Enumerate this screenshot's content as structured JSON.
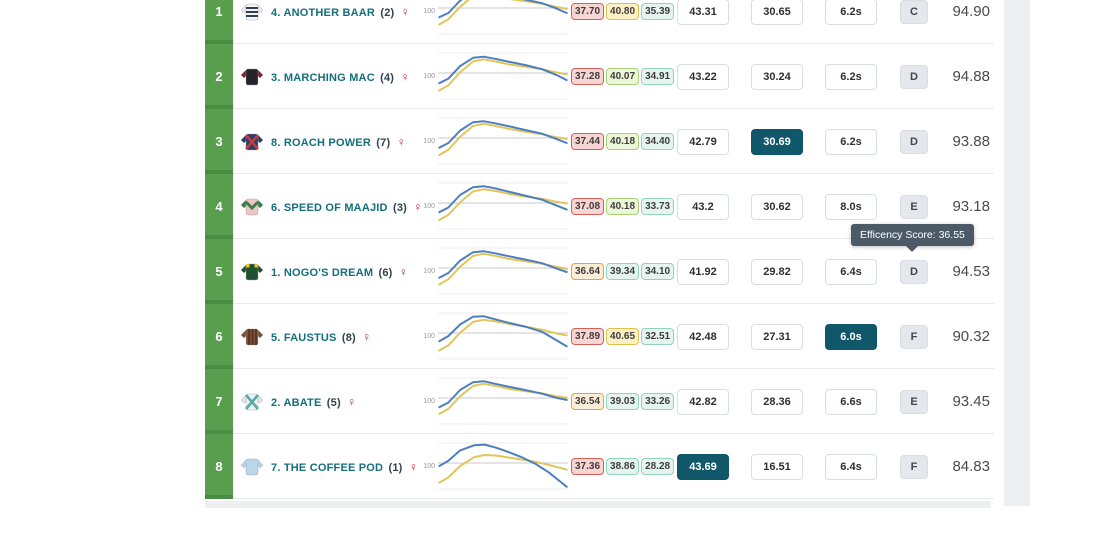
{
  "table": {
    "axis_label": "100"
  },
  "tooltip": {
    "text": "Efficency Score: 36.55"
  },
  "colors": {
    "rank_bg": "#599e4e",
    "rank_separator": "#4a8c43",
    "line_blue": "#4d7fc0",
    "line_yellow": "#e2c65c",
    "grid_main": "#c9c9c9",
    "grid_faint": "#ededed",
    "highlight_cell": "#10576a",
    "name_text": "#136f7c",
    "sex_icon": "#c42538"
  },
  "rows": [
    {
      "rank": "1",
      "silk": {
        "label": "silk-white-navy-hoops",
        "body": "#f5f5f5",
        "sleeve": "#e8e8ea",
        "pattern": "hoops",
        "pattern_color": "#2f3e55"
      },
      "number": "4.",
      "name": "ANOTHER BAAR",
      "draw": "(2)",
      "sex": "♀",
      "sectionals": [
        {
          "value": "37.70",
          "tone": "red"
        },
        {
          "value": "40.80",
          "tone": "yellow"
        },
        {
          "value": "35.39",
          "tone": "mint"
        }
      ],
      "metrics": [
        {
          "value": "43.31",
          "highlight": false
        },
        {
          "value": "30.65",
          "highlight": false
        },
        {
          "value": "6.2s",
          "highlight": false
        }
      ],
      "grade": "C",
      "score": "94.90",
      "chart": {
        "blue": [
          [
            1,
            60
          ],
          [
            8,
            52
          ],
          [
            17,
            28
          ],
          [
            27,
            12
          ],
          [
            35,
            10
          ],
          [
            44,
            14
          ],
          [
            55,
            20
          ],
          [
            67,
            26
          ],
          [
            80,
            33
          ],
          [
            91,
            43
          ],
          [
            99,
            52
          ]
        ],
        "yellow": [
          [
            1,
            74
          ],
          [
            8,
            64
          ],
          [
            17,
            40
          ],
          [
            27,
            19
          ],
          [
            35,
            15
          ],
          [
            44,
            19
          ],
          [
            55,
            25
          ],
          [
            67,
            29
          ],
          [
            80,
            34
          ],
          [
            91,
            40
          ],
          [
            99,
            44
          ]
        ]
      }
    },
    {
      "rank": "2",
      "silk": {
        "label": "silk-black-maroon",
        "body": "#26232a",
        "sleeve": "#7c2730",
        "pattern": "plain",
        "pattern_color": "#26232a"
      },
      "number": "3.",
      "name": "MARCHING MAC",
      "draw": "(4)",
      "sex": "♀",
      "sectionals": [
        {
          "value": "37.28",
          "tone": "red"
        },
        {
          "value": "40.07",
          "tone": "green"
        },
        {
          "value": "34.91",
          "tone": "mint"
        }
      ],
      "metrics": [
        {
          "value": "43.22",
          "highlight": false
        },
        {
          "value": "30.24",
          "highlight": false
        },
        {
          "value": "6.2s",
          "highlight": false
        }
      ],
      "grade": "D",
      "score": "94.88",
      "chart": {
        "blue": [
          [
            1,
            62
          ],
          [
            8,
            53
          ],
          [
            17,
            29
          ],
          [
            27,
            13
          ],
          [
            35,
            11
          ],
          [
            44,
            15
          ],
          [
            55,
            21
          ],
          [
            67,
            27
          ],
          [
            80,
            35
          ],
          [
            91,
            46
          ],
          [
            99,
            56
          ]
        ],
        "yellow": [
          [
            1,
            76
          ],
          [
            8,
            66
          ],
          [
            17,
            41
          ],
          [
            27,
            20
          ],
          [
            35,
            16
          ],
          [
            44,
            20
          ],
          [
            55,
            26
          ],
          [
            67,
            30
          ],
          [
            80,
            35
          ],
          [
            91,
            41
          ],
          [
            99,
            45
          ]
        ]
      }
    },
    {
      "rank": "3",
      "silk": {
        "label": "silk-navy-red-cross",
        "body": "#2d3c68",
        "sleeve": "#2d3c68",
        "pattern": "saltire",
        "pattern_color": "#c43b3b"
      },
      "number": "8.",
      "name": "ROACH POWER",
      "draw": "(7)",
      "sex": "♀",
      "sectionals": [
        {
          "value": "37.44",
          "tone": "red"
        },
        {
          "value": "40.18",
          "tone": "green"
        },
        {
          "value": "34.40",
          "tone": "mint"
        }
      ],
      "metrics": [
        {
          "value": "42.79",
          "highlight": false
        },
        {
          "value": "30.69",
          "highlight": true
        },
        {
          "value": "6.2s",
          "highlight": false
        }
      ],
      "grade": "D",
      "score": "93.88",
      "chart": {
        "blue": [
          [
            1,
            61
          ],
          [
            8,
            52
          ],
          [
            17,
            28
          ],
          [
            27,
            12
          ],
          [
            35,
            10
          ],
          [
            44,
            14
          ],
          [
            55,
            20
          ],
          [
            67,
            27
          ],
          [
            80,
            34
          ],
          [
            91,
            44
          ],
          [
            99,
            52
          ]
        ],
        "yellow": [
          [
            1,
            75
          ],
          [
            8,
            65
          ],
          [
            17,
            40
          ],
          [
            27,
            19
          ],
          [
            35,
            15
          ],
          [
            44,
            19
          ],
          [
            55,
            25
          ],
          [
            67,
            30
          ],
          [
            80,
            35
          ],
          [
            91,
            41
          ],
          [
            99,
            44
          ]
        ]
      }
    },
    {
      "rank": "4",
      "silk": {
        "label": "silk-pink-green-chevron",
        "body": "#ecc6c8",
        "sleeve": "#3f7d4b",
        "pattern": "chevron",
        "pattern_color": "#3f7d4b"
      },
      "number": "6.",
      "name": "SPEED OF MAAJID",
      "draw": "(3)",
      "sex": "♀",
      "sectionals": [
        {
          "value": "37.08",
          "tone": "red"
        },
        {
          "value": "40.18",
          "tone": "green"
        },
        {
          "value": "33.73",
          "tone": "mint"
        }
      ],
      "metrics": [
        {
          "value": "43.2",
          "highlight": false
        },
        {
          "value": "30.62",
          "highlight": false
        },
        {
          "value": "8.0s",
          "highlight": false
        }
      ],
      "grade": "E",
      "score": "93.18",
      "chart": {
        "blue": [
          [
            1,
            60
          ],
          [
            8,
            51
          ],
          [
            17,
            27
          ],
          [
            27,
            12
          ],
          [
            35,
            10
          ],
          [
            44,
            14
          ],
          [
            55,
            21
          ],
          [
            67,
            28
          ],
          [
            80,
            36
          ],
          [
            91,
            47
          ],
          [
            99,
            55
          ]
        ],
        "yellow": [
          [
            1,
            75
          ],
          [
            8,
            65
          ],
          [
            17,
            41
          ],
          [
            27,
            20
          ],
          [
            35,
            16
          ],
          [
            44,
            19
          ],
          [
            55,
            25
          ],
          [
            67,
            30
          ],
          [
            80,
            34
          ],
          [
            91,
            40
          ],
          [
            99,
            43
          ]
        ]
      }
    },
    {
      "rank": "5",
      "silk": {
        "label": "silk-darkgreen-yellow",
        "body": "#20512f",
        "sleeve": "#20512f",
        "pattern": "epaulets",
        "pattern_color": "#e5c733"
      },
      "number": "1.",
      "name": "NOGO'S DREAM",
      "draw": "(6)",
      "sex": "♀",
      "sectionals": [
        {
          "value": "36.64",
          "tone": "orange"
        },
        {
          "value": "39.34",
          "tone": "mint"
        },
        {
          "value": "34.10",
          "tone": "mint"
        }
      ],
      "metrics": [
        {
          "value": "41.92",
          "highlight": false
        },
        {
          "value": "29.82",
          "highlight": false
        },
        {
          "value": "6.4s",
          "highlight": false
        }
      ],
      "grade": "D",
      "score": "94.53",
      "chart": {
        "blue": [
          [
            1,
            61
          ],
          [
            8,
            52
          ],
          [
            17,
            28
          ],
          [
            27,
            12
          ],
          [
            35,
            10
          ],
          [
            44,
            14
          ],
          [
            55,
            20
          ],
          [
            67,
            26
          ],
          [
            80,
            33
          ],
          [
            91,
            43
          ],
          [
            99,
            50
          ]
        ],
        "yellow": [
          [
            1,
            74
          ],
          [
            8,
            64
          ],
          [
            17,
            40
          ],
          [
            27,
            19
          ],
          [
            35,
            15
          ],
          [
            44,
            19
          ],
          [
            55,
            25
          ],
          [
            67,
            29
          ],
          [
            80,
            34
          ],
          [
            91,
            40
          ],
          [
            99,
            44
          ]
        ]
      }
    },
    {
      "rank": "6",
      "silk": {
        "label": "silk-brown-stripes",
        "body": "#7d5138",
        "sleeve": "#7d5138",
        "pattern": "stripes",
        "pattern_color": "#56382a"
      },
      "number": "5.",
      "name": "FAUSTUS",
      "draw": "(8)",
      "sex": "♀",
      "sectionals": [
        {
          "value": "37.89",
          "tone": "red"
        },
        {
          "value": "40.65",
          "tone": "yellow"
        },
        {
          "value": "32.51",
          "tone": "mint"
        }
      ],
      "metrics": [
        {
          "value": "42.48",
          "highlight": false
        },
        {
          "value": "27.31",
          "highlight": false
        },
        {
          "value": "6.0s",
          "highlight": true
        }
      ],
      "grade": "F",
      "score": "90.32",
      "chart": {
        "blue": [
          [
            1,
            58
          ],
          [
            8,
            48
          ],
          [
            17,
            26
          ],
          [
            27,
            11
          ],
          [
            35,
            10
          ],
          [
            44,
            16
          ],
          [
            55,
            23
          ],
          [
            67,
            30
          ],
          [
            80,
            40
          ],
          [
            91,
            56
          ],
          [
            99,
            68
          ]
        ],
        "yellow": [
          [
            1,
            76
          ],
          [
            8,
            66
          ],
          [
            17,
            42
          ],
          [
            27,
            21
          ],
          [
            35,
            17
          ],
          [
            44,
            20
          ],
          [
            55,
            25
          ],
          [
            67,
            30
          ],
          [
            80,
            36
          ],
          [
            91,
            43
          ],
          [
            99,
            47
          ]
        ]
      }
    },
    {
      "rank": "7",
      "silk": {
        "label": "silk-white-teal-cross",
        "body": "#eef1f2",
        "sleeve": "#dfe5e7",
        "pattern": "saltire",
        "pattern_color": "#58aba4"
      },
      "number": "2.",
      "name": "ABATE",
      "draw": "(5)",
      "sex": "♀",
      "sectionals": [
        {
          "value": "36.54",
          "tone": "orange"
        },
        {
          "value": "39.03",
          "tone": "mint"
        },
        {
          "value": "33.26",
          "tone": "mint"
        }
      ],
      "metrics": [
        {
          "value": "42.82",
          "highlight": false
        },
        {
          "value": "28.36",
          "highlight": false
        },
        {
          "value": "6.6s",
          "highlight": false
        }
      ],
      "grade": "E",
      "score": "93.45",
      "chart": {
        "blue": [
          [
            1,
            60
          ],
          [
            8,
            51
          ],
          [
            17,
            27
          ],
          [
            27,
            12
          ],
          [
            35,
            10
          ],
          [
            44,
            15
          ],
          [
            55,
            21
          ],
          [
            67,
            27
          ],
          [
            80,
            34
          ],
          [
            91,
            42
          ],
          [
            99,
            46
          ]
        ],
        "yellow": [
          [
            1,
            73
          ],
          [
            8,
            63
          ],
          [
            17,
            39
          ],
          [
            27,
            19
          ],
          [
            35,
            15
          ],
          [
            44,
            19
          ],
          [
            55,
            25
          ],
          [
            67,
            29
          ],
          [
            80,
            33
          ],
          [
            91,
            39
          ],
          [
            99,
            42
          ]
        ]
      }
    },
    {
      "rank": "8",
      "silk": {
        "label": "silk-lightblue",
        "body": "#b9d6ea",
        "sleeve": "#b9d6ea",
        "pattern": "plain",
        "pattern_color": "#b9d6ea"
      },
      "number": "7.",
      "name": "THE COFFEE POD",
      "draw": "(1)",
      "sex": "♀",
      "sectionals": [
        {
          "value": "37.36",
          "tone": "red"
        },
        {
          "value": "38.86",
          "tone": "mint"
        },
        {
          "value": "28.28",
          "tone": "mint"
        }
      ],
      "metrics": [
        {
          "value": "43.69",
          "highlight": true
        },
        {
          "value": "16.51",
          "highlight": false
        },
        {
          "value": "6.4s",
          "highlight": false
        }
      ],
      "grade": "F",
      "score": "84.83",
      "chart": {
        "blue": [
          [
            1,
            48
          ],
          [
            8,
            38
          ],
          [
            17,
            18
          ],
          [
            28,
            8
          ],
          [
            36,
            7
          ],
          [
            45,
            13
          ],
          [
            55,
            22
          ],
          [
            65,
            32
          ],
          [
            75,
            44
          ],
          [
            85,
            60
          ],
          [
            93,
            76
          ],
          [
            99,
            88
          ]
        ],
        "yellow": [
          [
            1,
            80
          ],
          [
            8,
            70
          ],
          [
            17,
            48
          ],
          [
            28,
            31
          ],
          [
            36,
            27
          ],
          [
            45,
            28
          ],
          [
            55,
            32
          ],
          [
            65,
            36
          ],
          [
            75,
            40
          ],
          [
            85,
            46
          ],
          [
            93,
            51
          ],
          [
            99,
            55
          ]
        ]
      }
    }
  ]
}
